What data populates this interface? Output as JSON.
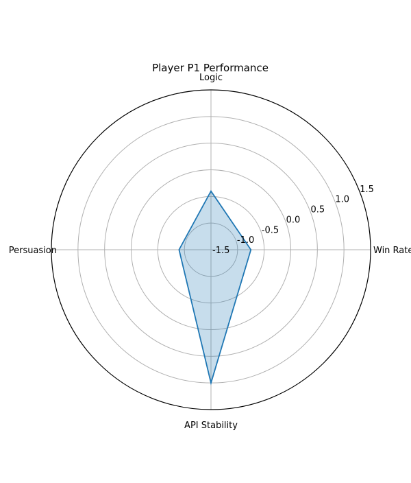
{
  "chart_data": {
    "type": "radar",
    "title": "Player P1 Performance",
    "axes": [
      "Win Rate",
      "Logic",
      "Persuasion",
      "API Stability"
    ],
    "series": [
      {
        "values": [
          -0.75,
          -0.4,
          -0.9,
          1.0
        ]
      }
    ],
    "rlim": [
      -1.5,
      1.5
    ],
    "radial_ticks": [
      -1.5,
      -1.0,
      -0.5,
      0.0,
      0.5,
      1.0,
      1.5
    ],
    "radial_tick_labels": [
      "-1.5",
      "-1.0",
      "-0.5",
      "0.0",
      "0.5",
      "1.0",
      "1.5"
    ],
    "grid": true,
    "colors": {
      "line": "#1f77b4",
      "fill": "#1f77b4",
      "grid": "#b0b0b0",
      "frame": "#000000",
      "text": "#000000"
    }
  }
}
